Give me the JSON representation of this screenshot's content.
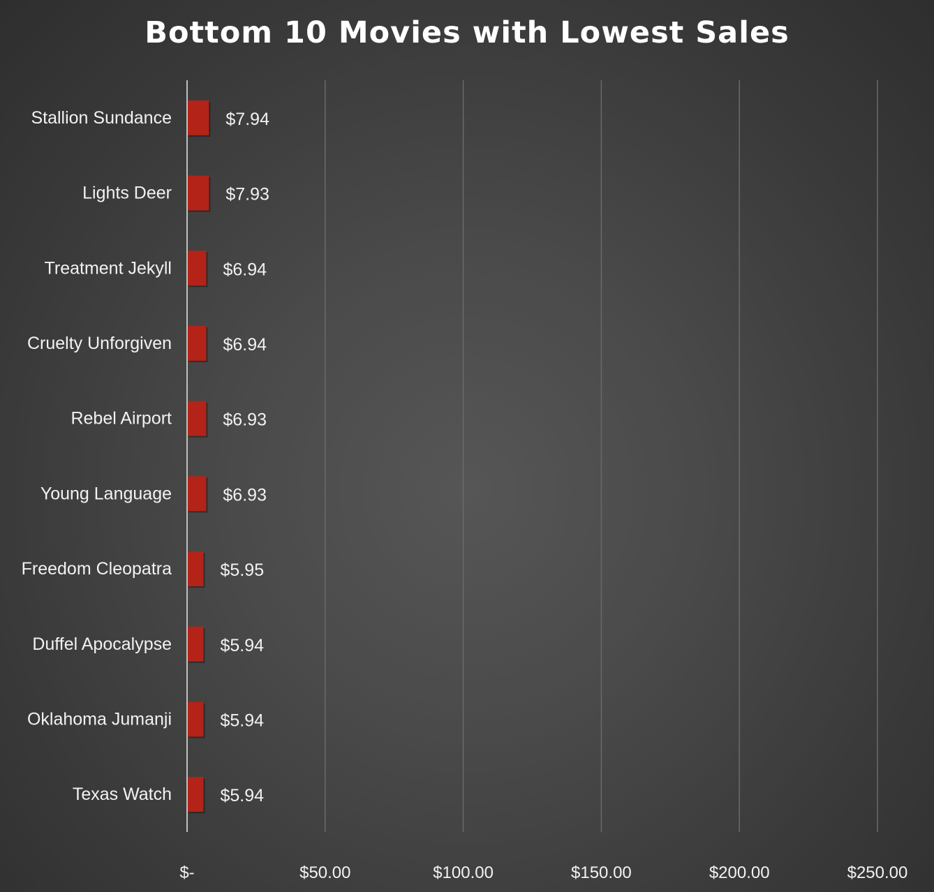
{
  "chart_data": {
    "type": "bar",
    "orientation": "horizontal",
    "title": "Bottom 10 Movies with Lowest Sales",
    "categories": [
      "Stallion Sundance",
      "Lights Deer",
      "Treatment Jekyll",
      "Cruelty Unforgiven",
      "Rebel Airport",
      "Young Language",
      "Freedom Cleopatra",
      "Duffel Apocalypse",
      "Oklahoma Jumanji",
      "Texas Watch"
    ],
    "values": [
      7.94,
      7.93,
      6.94,
      6.94,
      6.93,
      6.93,
      5.95,
      5.94,
      5.94,
      5.94
    ],
    "data_labels": [
      "$7.94",
      "$7.93",
      "$6.94",
      "$6.94",
      "$6.93",
      "$6.93",
      "$5.95",
      "$5.94",
      "$5.94",
      "$5.94"
    ],
    "xlim": [
      0,
      250
    ],
    "x_ticks": [
      0,
      50,
      100,
      150,
      200,
      250
    ],
    "x_tick_labels": [
      "$-",
      "$50.00",
      "$100.00",
      "$150.00",
      "$200.00",
      "$250.00"
    ],
    "xlabel": "",
    "ylabel": "",
    "grid": "vertical",
    "legend": "none",
    "colors": {
      "bar": "#b42318",
      "background": "#4a4a4a",
      "text": "#f2f2f2",
      "gridline": "#6a6a6a",
      "axis": "#bfbfbf"
    }
  }
}
